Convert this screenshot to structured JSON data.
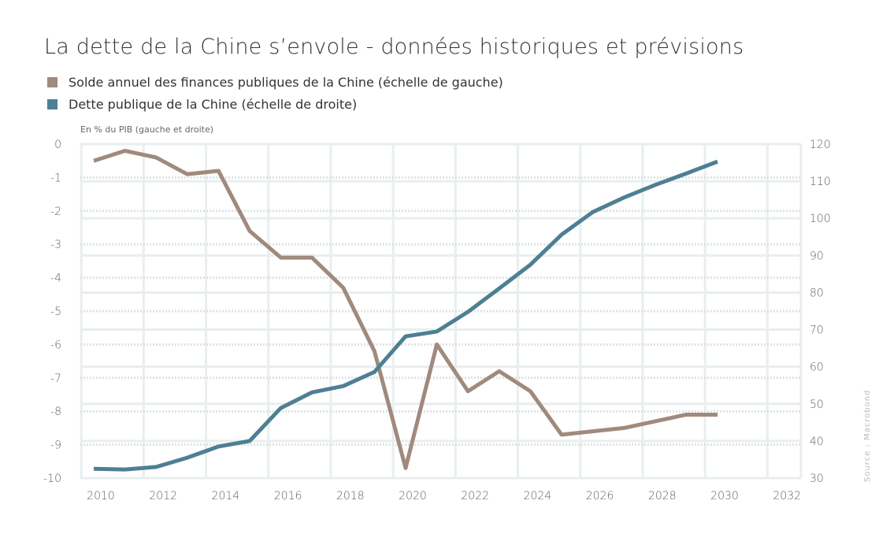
{
  "chart_data": {
    "type": "line",
    "title": "La dette de la Chine s’envole - données historiques et prévisions",
    "ylabel": "En % du PIB (gauche et droite)",
    "source": "Source : Macrobond",
    "x": [
      2010,
      2011,
      2012,
      2013,
      2014,
      2015,
      2016,
      2017,
      2018,
      2019,
      2020,
      2021,
      2022,
      2023,
      2024,
      2025,
      2026,
      2027,
      2028,
      2029,
      2030
    ],
    "xlim": [
      2009.6,
      2032.7
    ],
    "x_ticks": [
      2010,
      2012,
      2014,
      2016,
      2018,
      2020,
      2022,
      2024,
      2026,
      2028,
      2030,
      2032
    ],
    "y_left": {
      "range": [
        -10,
        0
      ],
      "ticks": [
        0,
        -1,
        -2,
        -3,
        -4,
        -5,
        -6,
        -7,
        -8,
        -9,
        -10
      ]
    },
    "y_right": {
      "range": [
        30,
        120
      ],
      "ticks": [
        120,
        110,
        100,
        90,
        80,
        70,
        60,
        50,
        40,
        30
      ]
    },
    "grid": true,
    "legend_placement": "top-left",
    "series": [
      {
        "name": "Solde annuel des finances publiques de la Chine (échelle de gauche)",
        "axis": "left",
        "color": "#a08a7d",
        "values": [
          -0.5,
          -0.2,
          -0.4,
          -0.9,
          -0.8,
          -2.6,
          -3.4,
          -3.4,
          -4.3,
          -6.2,
          -9.7,
          -6.0,
          -7.4,
          -6.8,
          -7.4,
          -8.7,
          -8.6,
          -8.5,
          -8.3,
          -8.1,
          -8.1
        ]
      },
      {
        "name": "Dette publique de la Chine (échelle de droite)",
        "axis": "right",
        "color": "#4e7f94",
        "values": [
          32.5,
          32.3,
          33.0,
          35.5,
          38.5,
          40.0,
          48.9,
          53.1,
          54.8,
          58.6,
          68.2,
          69.5,
          74.8,
          81.1,
          87.5,
          95.6,
          101.7,
          105.6,
          109.0,
          112.1,
          115.3
        ]
      }
    ]
  }
}
